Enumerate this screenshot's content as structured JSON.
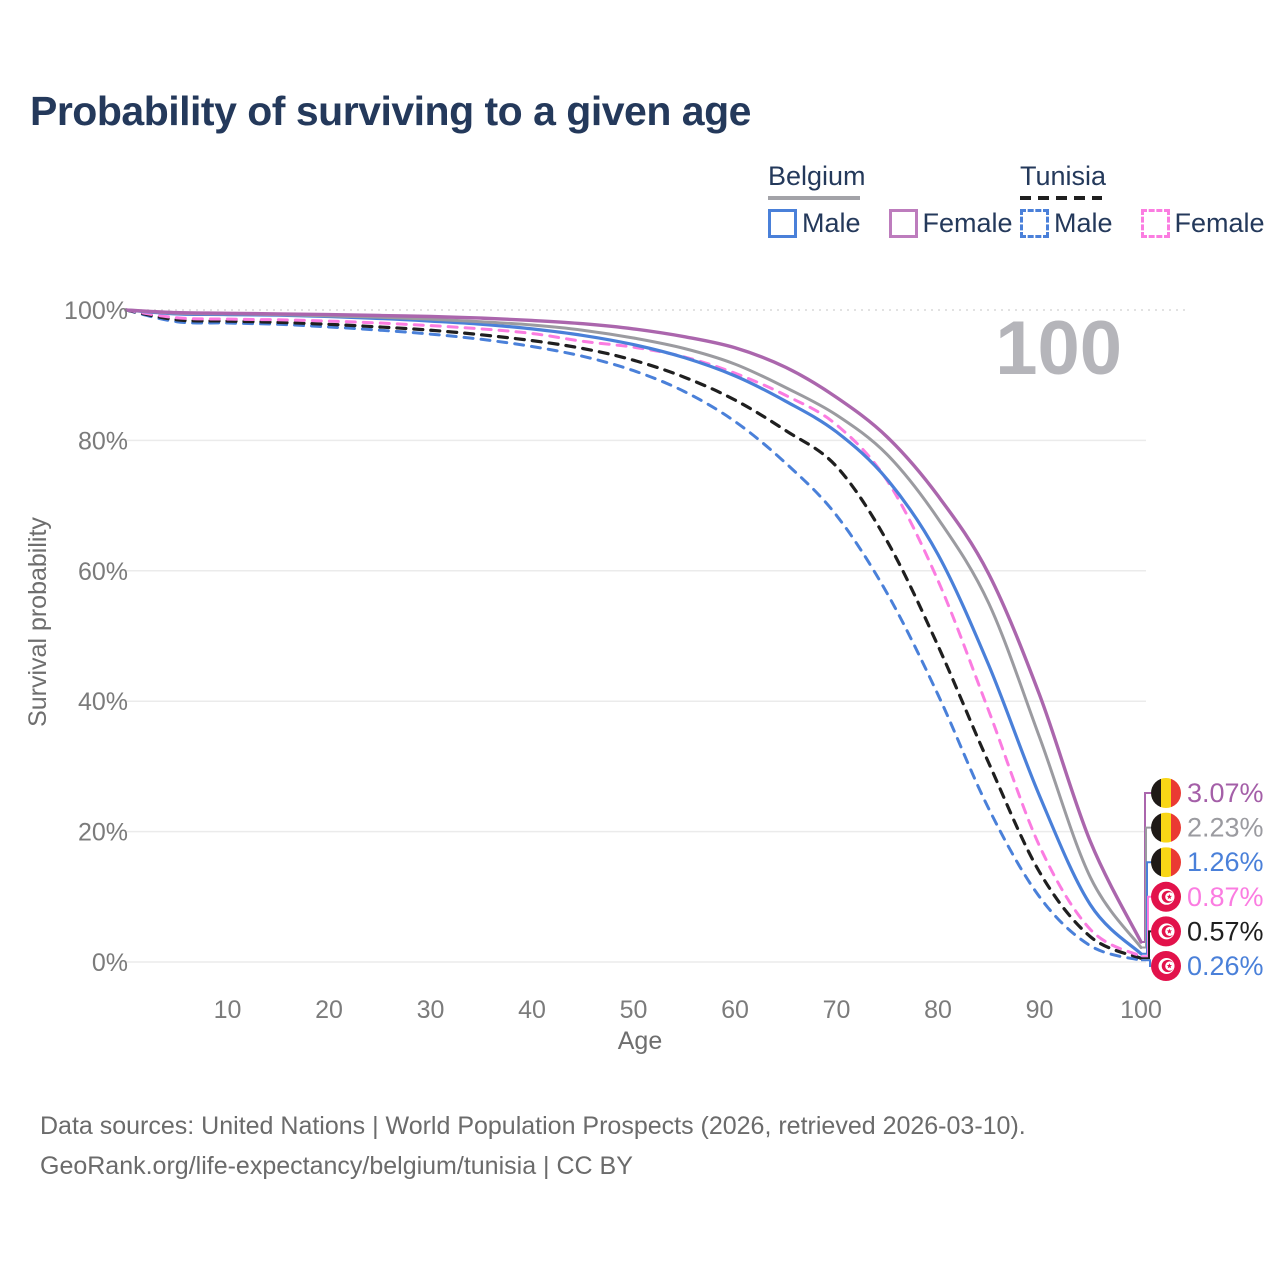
{
  "title": "Probability of surviving to a given age",
  "legend": {
    "groups": [
      {
        "label": "Belgium",
        "line_style": "solid",
        "line_color": "#a3a3a8",
        "items": [
          {
            "label": "Male",
            "color": "#4a80d9",
            "dashed": false
          },
          {
            "label": "Female",
            "color": "#bd7cbd",
            "dashed": false
          }
        ]
      },
      {
        "label": "Tunisia",
        "line_style": "dashed",
        "line_color": "#1f1f1f",
        "items": [
          {
            "label": "Male",
            "color": "#4a80d9",
            "dashed": true
          },
          {
            "label": "Female",
            "color": "#fb7ce1",
            "dashed": true
          }
        ]
      }
    ]
  },
  "chart_data": {
    "type": "line",
    "title": "Probability of surviving to a given age",
    "xlabel": "Age",
    "ylabel": "Survival probability",
    "xlim": [
      0,
      100
    ],
    "ylim": [
      0,
      100
    ],
    "grid": "horizontal",
    "age_counter": "100",
    "x_ticks": [
      "10",
      "20",
      "30",
      "40",
      "50",
      "60",
      "70",
      "80",
      "90",
      "100"
    ],
    "x_tick_values": [
      10,
      20,
      30,
      40,
      50,
      60,
      70,
      80,
      90,
      100
    ],
    "y_ticks": [
      "0%",
      "20%",
      "40%",
      "60%",
      "80%",
      "100%"
    ],
    "y_tick_values": [
      0,
      20,
      40,
      60,
      80,
      100
    ],
    "x": [
      0,
      5,
      10,
      15,
      20,
      25,
      30,
      35,
      40,
      45,
      50,
      55,
      60,
      65,
      70,
      75,
      80,
      85,
      90,
      95,
      100
    ],
    "series": [
      {
        "name": "Belgium Female",
        "color": "#ab66ad",
        "label_color": "#a45fa8",
        "dashed": false,
        "width": 3.4,
        "flag": "belgium",
        "end_label": "3.07%",
        "values": [
          100,
          99.6,
          99.5,
          99.4,
          99.3,
          99.15,
          99.0,
          98.75,
          98.4,
          97.9,
          97.1,
          95.9,
          94.2,
          91.2,
          86.6,
          80.5,
          71.5,
          59.5,
          41.0,
          18.5,
          3.07
        ]
      },
      {
        "name": "Belgium",
        "color": "#9b9ba0",
        "label_color": "#9b9ba0",
        "dashed": false,
        "width": 3.0,
        "flag": "belgium",
        "end_label": "2.23%",
        "values": [
          100,
          99.5,
          99.4,
          99.3,
          99.1,
          98.9,
          98.6,
          98.2,
          97.7,
          96.9,
          95.7,
          94.1,
          91.7,
          88.1,
          83.9,
          77.8,
          68.0,
          55.0,
          34.5,
          13.0,
          2.23
        ]
      },
      {
        "name": "Belgium Male",
        "color": "#4a80d9",
        "label_color": "#4a80d9",
        "dashed": false,
        "width": 3.2,
        "flag": "belgium",
        "end_label": "1.26%",
        "values": [
          100,
          99.4,
          99.3,
          99.2,
          99.0,
          98.7,
          98.3,
          97.8,
          97.1,
          96.1,
          94.7,
          92.7,
          89.9,
          86.0,
          81.3,
          74.0,
          62.5,
          45.5,
          25.5,
          8.8,
          1.26
        ]
      },
      {
        "name": "Tunisia Female",
        "color": "#fb7ce1",
        "label_color": "#fb7ce1",
        "dashed": true,
        "width": 3.0,
        "flag": "tunisia",
        "end_label": "0.87%",
        "values": [
          100,
          98.8,
          98.6,
          98.5,
          98.3,
          98.0,
          97.6,
          97.1,
          96.4,
          95.2,
          94.3,
          92.8,
          90.3,
          86.9,
          82.4,
          73.8,
          58.5,
          38.5,
          17.8,
          5.0,
          0.87
        ]
      },
      {
        "name": "Tunisia",
        "color": "#1f1f1f",
        "label_color": "#1f1f1f",
        "dashed": true,
        "width": 3.2,
        "flag": "tunisia",
        "end_label": "0.57%",
        "values": [
          100,
          98.5,
          98.3,
          98.1,
          97.8,
          97.4,
          96.9,
          96.2,
          95.3,
          94.1,
          92.3,
          89.7,
          86.2,
          81.5,
          76.0,
          64.5,
          48.5,
          30.5,
          13.8,
          3.9,
          0.57
        ]
      },
      {
        "name": "Tunisia Male",
        "color": "#4a80d9",
        "label_color": "#4a80d9",
        "dashed": true,
        "width": 3.0,
        "flag": "tunisia",
        "end_label": "0.26%",
        "values": [
          100,
          98.2,
          98.0,
          97.8,
          97.4,
          96.9,
          96.3,
          95.5,
          94.4,
          92.9,
          90.7,
          87.5,
          82.9,
          76.5,
          68.5,
          56.5,
          41.0,
          23.5,
          10.0,
          2.5,
          0.26
        ]
      }
    ],
    "flag_colors": {
      "belgium_black": "#1f1a17",
      "belgium_yellow": "#f9d616",
      "belgium_red": "#ea3a33",
      "tunisia_red": "#e2124b"
    },
    "style": {
      "gridline_color": "#ebebeb",
      "top_gridline_color": "#d8d8d8",
      "tick_color": "#7b7b7b",
      "axis_title_color": "#6e6e6e",
      "counter_color": "#b5b5ba"
    }
  },
  "footer": {
    "line1": "Data sources: United Nations | World Population Prospects (2026, retrieved 2026-03-10).",
    "line2": "GeoRank.org/life-expectancy/belgium/tunisia | CC BY"
  }
}
